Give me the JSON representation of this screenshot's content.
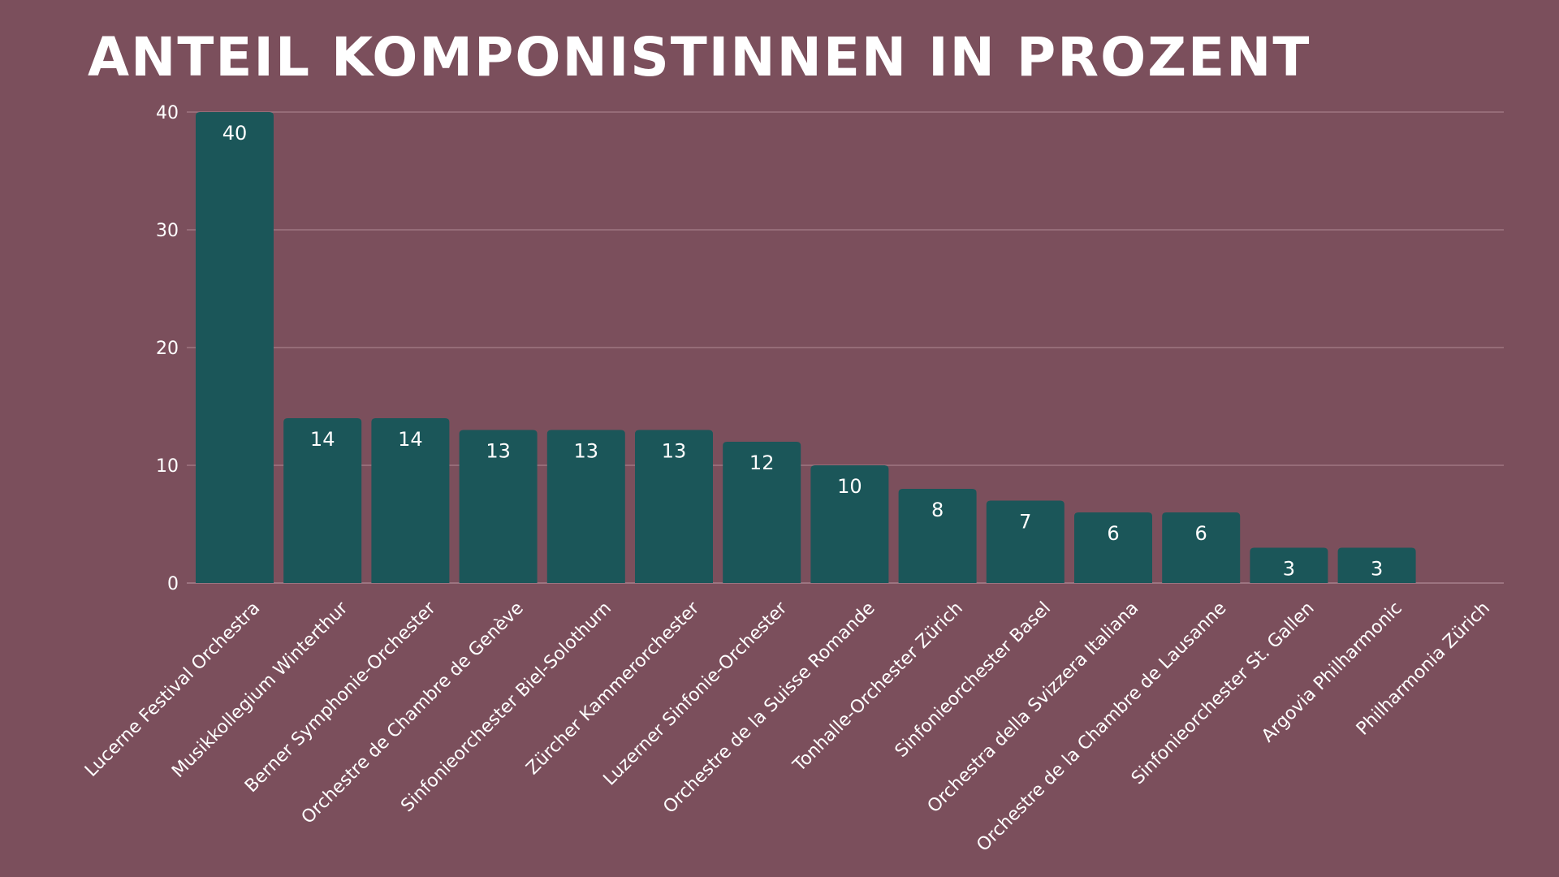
{
  "chart_data": {
    "type": "bar",
    "title": "Anteil Komponistinnen in Prozent",
    "categories": [
      "Lucerne Festival Orchestra",
      "Musikkollegium Winterthur",
      "Berner Symphonie-Orchester",
      "Orchestre de Chambre de Genève",
      "Sinfonieorchester Biel-Solothurn",
      "Zürcher Kammerorchester",
      "Luzerner Sinfonie-Orchester",
      "Orchestre de la Suisse Romande",
      "Tonhalle-Orchester Zürich",
      "Sinfonieorchester Basel",
      "Orchestra della Svizzera Italiana",
      "Orchestre de la Chambre de Lausanne",
      "Sinfonieorchester St. Gallen",
      "Argovia Philharmonic",
      "Philharmonia Zürich"
    ],
    "values": [
      40,
      14,
      14,
      13,
      13,
      13,
      12,
      10,
      8,
      7,
      6,
      6,
      3,
      3,
      0
    ],
    "data_labels": [
      "40",
      "14",
      "14",
      "13",
      "13",
      "13",
      "12",
      "10",
      "8",
      "7",
      "6",
      "6",
      "3",
      "3",
      ""
    ],
    "yticks": [
      0,
      10,
      20,
      30,
      40
    ],
    "ylim": [
      0,
      40
    ],
    "xlabel": "",
    "ylabel": "",
    "grid": true,
    "legend": "none",
    "colors": {
      "background": "#7b4f5c",
      "bar": "#1b5659",
      "text": "#ffffff",
      "grid": "#b08a95"
    }
  }
}
